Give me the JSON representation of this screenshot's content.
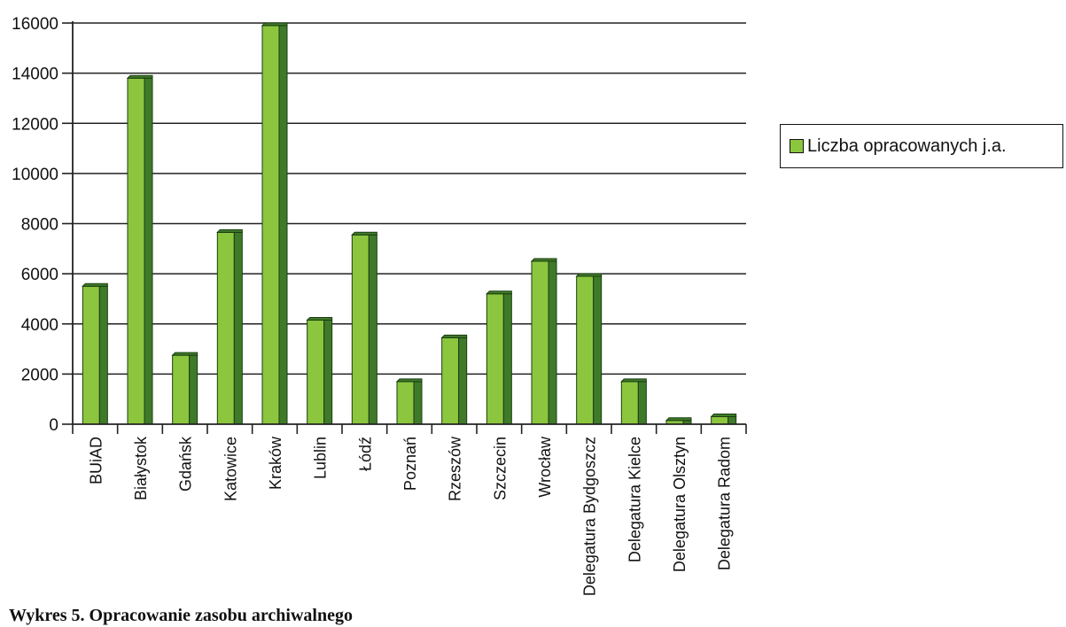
{
  "caption": "Wykres 5. Opracowanie zasobu archiwalnego",
  "chart_data": {
    "type": "bar",
    "title": "",
    "xlabel": "",
    "ylabel": "",
    "ylim": [
      0,
      16000
    ],
    "yticks": [
      "0",
      "2000",
      "4000",
      "6000",
      "8000",
      "10000",
      "12000",
      "14000",
      "16000"
    ],
    "grid": true,
    "legend_position": "right",
    "categories": [
      "BUiAD",
      "Białystok",
      "Gdańsk",
      "Katowice",
      "Kraków",
      "Lublin",
      "Łódź",
      "Poznań",
      "Rzeszów",
      "Szczecin",
      "Wrocław",
      "Delegatura Bydgoszcz",
      "Delegatura Kielce",
      "Delegatura Olsztyn",
      "Delegatura Radom"
    ],
    "series": [
      {
        "name": "Liczba opracowanych j.a.",
        "color": "#8cc63f",
        "side_color": "#3f7a2a",
        "values": [
          5500,
          13800,
          2750,
          7650,
          15900,
          4150,
          7550,
          1700,
          3450,
          5200,
          6500,
          5900,
          1700,
          150,
          300
        ]
      }
    ]
  }
}
